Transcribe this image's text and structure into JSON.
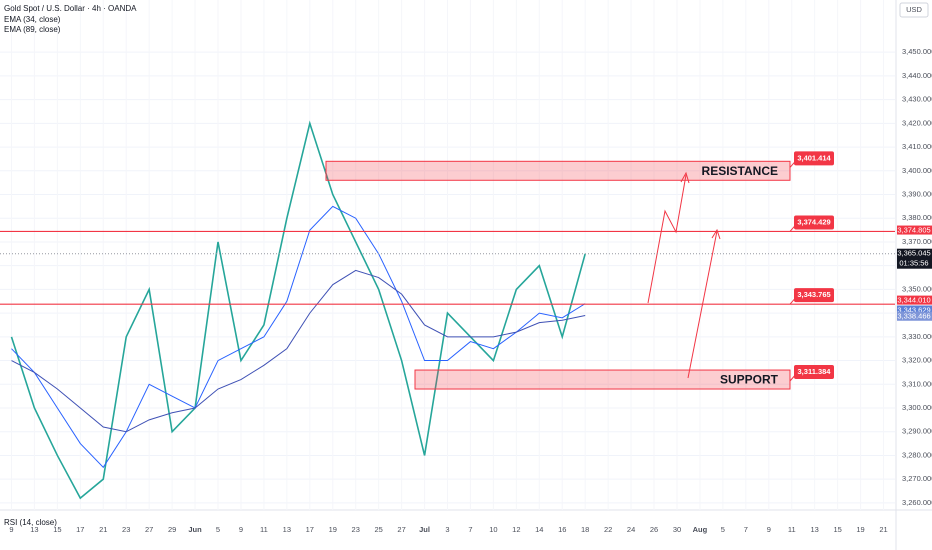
{
  "chart_data": {
    "type": "line",
    "title": "Gold Spot / U.S. Dollar · 4h · OANDA",
    "currency": "USD",
    "rsi_label": "RSI (14, close)",
    "categories": [
      "9",
      "13",
      "15",
      "17",
      "21",
      "23",
      "27",
      "29",
      "Jun",
      "5",
      "9",
      "11",
      "13",
      "17",
      "19",
      "23",
      "25",
      "27",
      "Jul",
      "3",
      "7",
      "10",
      "12",
      "14",
      "16",
      "18",
      "22",
      "24",
      "26",
      "30",
      "Aug",
      "5",
      "7",
      "9",
      "11",
      "13",
      "15",
      "19",
      "21"
    ],
    "series": [
      {
        "color": "#26a69a",
        "values": [
          3330,
          3300,
          3280,
          3262,
          3270,
          3330,
          3350,
          3290,
          3300,
          3370,
          3320,
          3335,
          3380,
          3420,
          3390,
          3370,
          3350,
          3320,
          3280,
          3340,
          3330,
          3320,
          3350,
          3360,
          3330,
          3365,
          null,
          null,
          null,
          null,
          null,
          null,
          null,
          null,
          null,
          null,
          null,
          null,
          null
        ]
      },
      {
        "name": "EMA (34, close)",
        "color": "#2962ff",
        "values": [
          3325,
          3315,
          3300,
          3285,
          3275,
          3290,
          3310,
          3305,
          3300,
          3320,
          3325,
          3330,
          3345,
          3375,
          3385,
          3380,
          3365,
          3345,
          3320,
          3320,
          3328,
          3325,
          3332,
          3340,
          3338,
          3344,
          null,
          null,
          null,
          null,
          null,
          null,
          null,
          null,
          null,
          null,
          null,
          null,
          null
        ]
      },
      {
        "name": "EMA (89, close)",
        "color": "#3f51b5",
        "values": [
          3320,
          3315,
          3308,
          3300,
          3292,
          3290,
          3295,
          3298,
          3300,
          3308,
          3312,
          3318,
          3325,
          3340,
          3352,
          3358,
          3355,
          3348,
          3335,
          3330,
          3330,
          3330,
          3332,
          3336,
          3337,
          3339,
          null,
          null,
          null,
          null,
          null,
          null,
          null,
          null,
          null,
          null,
          null,
          null,
          null
        ]
      }
    ],
    "levels": [
      {
        "value": 3401.414,
        "label": "3,401.414"
      },
      {
        "value": 3374.429,
        "label": "3,374.429"
      },
      {
        "value": 3343.765,
        "label": "3,343.765"
      },
      {
        "value": 3311.384,
        "label": "3,311.384"
      }
    ],
    "zones": [
      {
        "name": "RESISTANCE",
        "low": 3396,
        "high": 3404
      },
      {
        "name": "SUPPORT",
        "low": 3308,
        "high": 3316
      }
    ],
    "price_tags": [
      {
        "value": 3374.805,
        "label": "3,374.805",
        "color": "#f23645"
      },
      {
        "value": 3365.045,
        "label": "3,365.045",
        "color": "#131722",
        "countdown": "01:35:56"
      },
      {
        "value": 3344.01,
        "label": "3,344.010",
        "color": "#f23645"
      },
      {
        "value": 3343.629,
        "label": "3,343.629",
        "color": "#5b7fd6"
      },
      {
        "value": 3338.466,
        "label": "3,338.466",
        "color": "#7e95d8"
      }
    ],
    "ylim": [
      3257,
      3472
    ],
    "yticks": [
      {
        "value": 3260,
        "label": "3,260.000"
      },
      {
        "value": 3270,
        "label": "3,270.000"
      },
      {
        "value": 3280,
        "label": "3,280.000"
      },
      {
        "value": 3290,
        "label": "3,290.000"
      },
      {
        "value": 3300,
        "label": "3,300.000"
      },
      {
        "value": 3310,
        "label": "3,310.000"
      },
      {
        "value": 3320,
        "label": "3,320.000"
      },
      {
        "value": 3330,
        "label": "3,330.000"
      },
      {
        "value": 3340,
        "label": "3,340.000"
      },
      {
        "value": 3350,
        "label": "3,350.000"
      },
      {
        "value": 3360,
        "label": "3,360.000"
      },
      {
        "value": 3370,
        "label": "3,370.000"
      },
      {
        "value": 3380,
        "label": "3,380.000"
      },
      {
        "value": 3390,
        "label": "3,390.000"
      },
      {
        "value": 3400,
        "label": "3,400.000"
      },
      {
        "value": 3410,
        "label": "3,410.000"
      },
      {
        "value": 3420,
        "label": "3,420.000"
      },
      {
        "value": 3430,
        "label": "3,430.000"
      },
      {
        "value": 3440,
        "label": "3,440.000"
      },
      {
        "value": 3450,
        "label": "3,450.000"
      }
    ],
    "level_color": "#f23645"
  }
}
